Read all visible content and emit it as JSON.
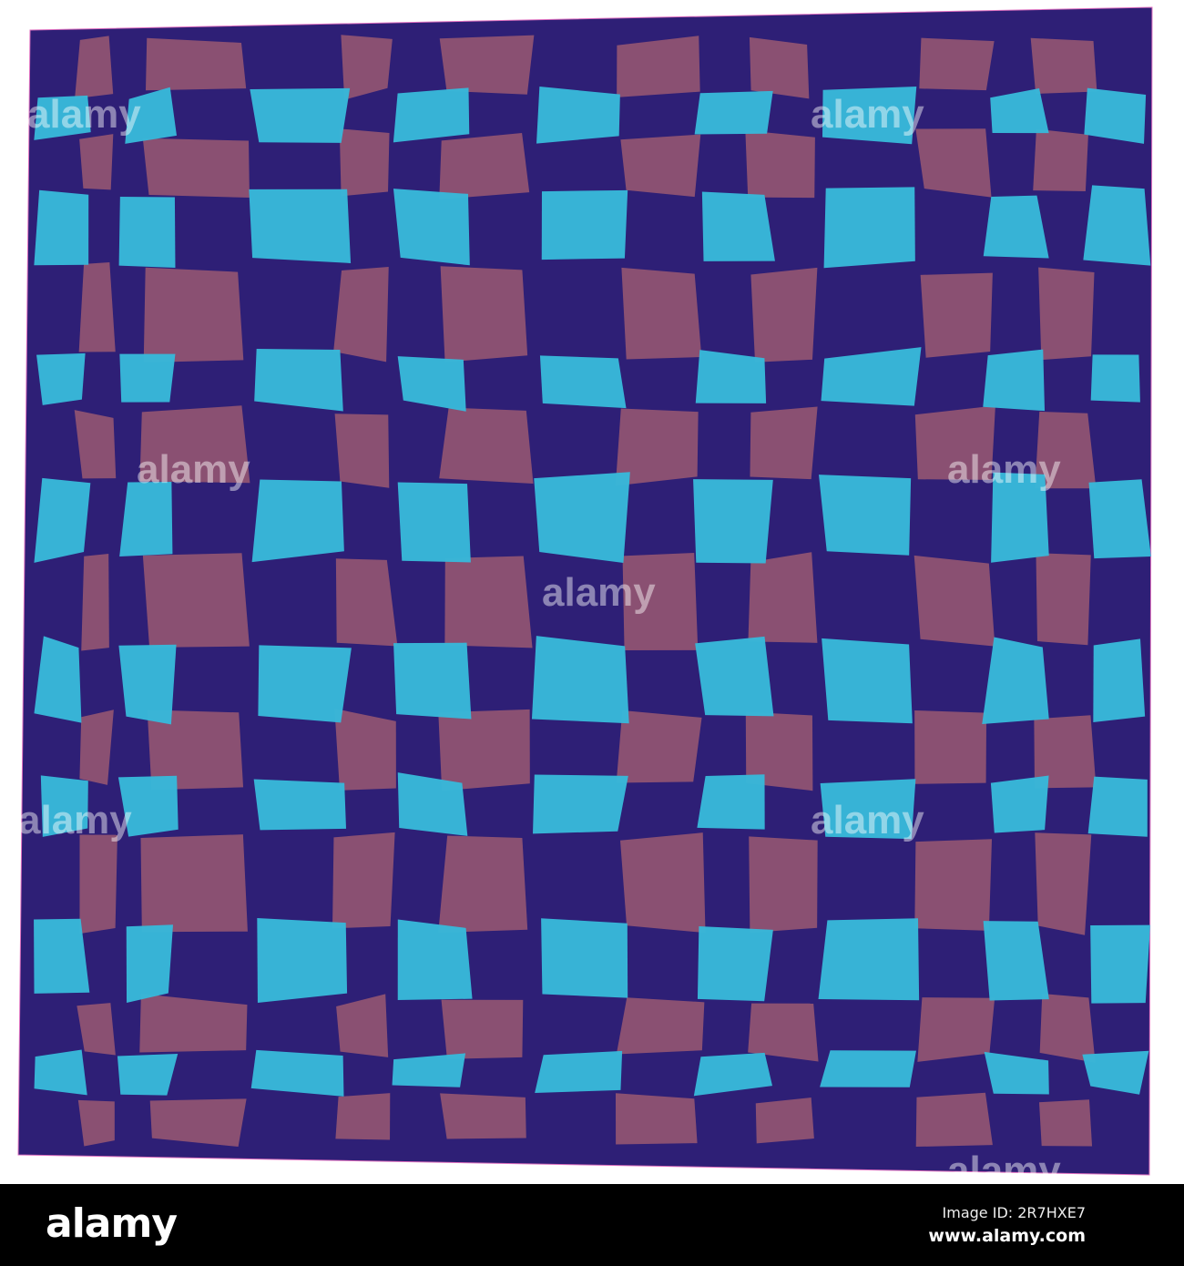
{
  "colors": {
    "background": "#2e1f76",
    "cyan": "#38b8d9",
    "mauve": "#8d5272",
    "border": "#e070c0"
  },
  "watermark": "alamy",
  "footer": {
    "logo": "alamy",
    "image_id": "Image ID: 2R7HXE7",
    "website": "www.alamy.com"
  }
}
